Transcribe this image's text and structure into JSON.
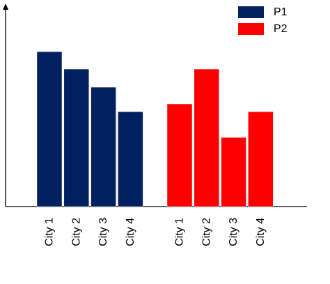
{
  "chart_data": {
    "type": "bar",
    "groups": [
      {
        "name": "P1",
        "color": "#002060",
        "categories": [
          "City 1",
          "City 2",
          "City 3",
          "City 4"
        ],
        "values": [
          222,
          197,
          171,
          136
        ]
      },
      {
        "name": "P2",
        "color": "#FF0000",
        "categories": [
          "City 1",
          "City 2",
          "City 3",
          "City 4"
        ],
        "values": [
          147,
          197,
          99,
          136
        ]
      }
    ],
    "legend": {
      "position": "top-right",
      "entries": [
        {
          "label": "P1",
          "color": "#002060"
        },
        {
          "label": "P2",
          "color": "#FF0000"
        }
      ]
    },
    "ylim": [
      0,
      280
    ],
    "grid": false,
    "title": "",
    "xlabel": "",
    "ylabel": ""
  }
}
